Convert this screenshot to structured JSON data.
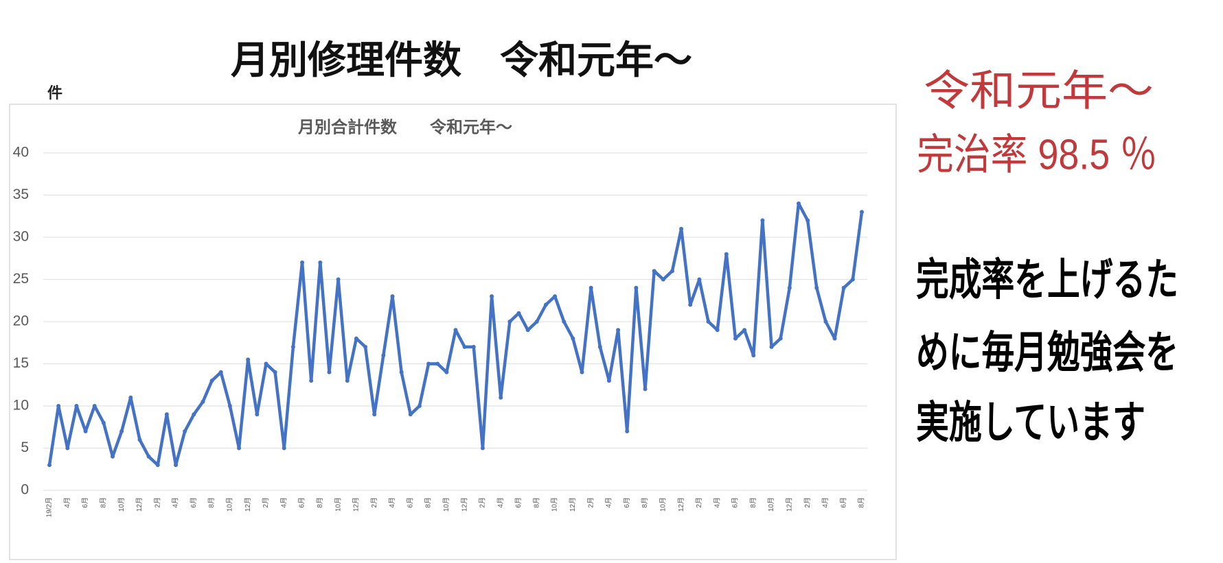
{
  "header": {
    "title": "月別修理件数　令和元年～"
  },
  "chart_data": {
    "type": "line",
    "title": "月別合計件数　　令和元年～",
    "ylabel": "件",
    "categories": [
      "19/2月",
      null,
      "4月",
      null,
      "6月",
      null,
      "8月",
      null,
      "10月",
      null,
      "12月",
      null,
      "2月",
      null,
      "4月",
      null,
      "6月",
      null,
      "8月",
      null,
      "10月",
      null,
      "12月",
      null,
      "2月",
      null,
      "4月",
      null,
      "6月",
      null,
      "8月",
      null,
      "10月",
      null,
      "12月",
      null,
      "2月",
      null,
      "4月",
      null,
      "6月",
      null,
      "8月",
      null,
      "10月",
      null,
      "12月",
      null,
      "2月",
      null,
      "4月",
      null,
      "6月",
      null,
      "8月",
      null,
      "10月",
      null,
      "12月",
      null,
      "2月",
      null,
      "4月",
      null,
      "6月",
      null,
      "8月",
      null,
      "10月",
      null,
      "12月",
      null,
      "2月",
      null,
      "4月",
      null,
      "6月",
      null,
      "8月",
      null,
      "10月",
      null,
      "12月",
      null,
      "2月",
      null,
      "4月",
      null,
      "6月",
      null,
      "8月"
    ],
    "values": [
      3,
      10,
      5,
      10,
      7,
      10,
      8,
      4,
      7,
      11,
      6,
      4,
      3,
      9,
      3,
      7,
      9,
      10.5,
      13,
      14,
      10,
      5,
      15.5,
      9,
      15,
      14,
      5,
      17,
      27,
      13,
      27,
      14,
      25,
      13,
      18,
      17,
      9,
      16,
      23,
      14,
      9,
      10,
      15,
      15,
      14,
      19,
      17,
      17,
      5,
      23,
      11,
      20,
      21,
      19,
      20,
      22,
      23,
      20,
      18,
      14,
      24,
      17,
      13,
      19,
      7,
      24,
      12,
      26,
      25,
      26,
      31,
      22,
      25,
      20,
      19,
      28,
      18,
      19,
      16,
      32,
      17,
      18,
      24,
      34,
      32,
      24,
      20,
      18,
      24,
      25,
      33
    ],
    "color": "#4472c4",
    "ylim": [
      0,
      40
    ],
    "yticks": [
      0,
      5,
      10,
      15,
      20,
      25,
      30,
      35,
      40
    ],
    "grid": true
  },
  "side_text": {
    "highlight": [
      "令和元年～",
      "完治率 98.5 ％"
    ],
    "message": [
      "完成率を上げるた",
      "めに毎月勉強会を",
      "実施しています"
    ]
  }
}
